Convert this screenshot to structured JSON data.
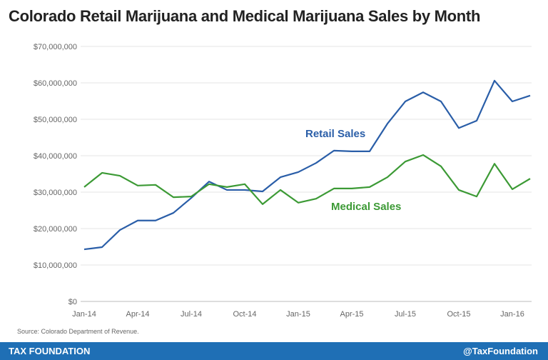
{
  "chart_data": {
    "type": "line",
    "title": "Colorado Retail Marijuana and Medical Marijuana Sales by Month",
    "xlabel": "",
    "ylabel": "",
    "x": [
      "Jan-14",
      "Feb-14",
      "Mar-14",
      "Apr-14",
      "May-14",
      "Jun-14",
      "Jul-14",
      "Aug-14",
      "Sep-14",
      "Oct-14",
      "Nov-14",
      "Dec-14",
      "Jan-15",
      "Feb-15",
      "Mar-15",
      "Apr-15",
      "May-15",
      "Jun-15",
      "Jul-15",
      "Aug-15",
      "Sep-15",
      "Oct-15",
      "Nov-15",
      "Dec-15",
      "Jan-16",
      "Feb-16"
    ],
    "x_tick_labels": [
      "Jan-14",
      "Apr-14",
      "Jul-14",
      "Oct-14",
      "Jan-15",
      "Apr-15",
      "Jul-15",
      "Oct-15",
      "Jan-16"
    ],
    "y_tick_labels": [
      "$0",
      "$10,000,000",
      "$20,000,000",
      "$30,000,000",
      "$40,000,000",
      "$50,000,000",
      "$60,000,000",
      "$70,000,000"
    ],
    "ylim": [
      0,
      70000000
    ],
    "grid": true,
    "series": [
      {
        "name": "Retail Sales",
        "color": "#2a5ea8",
        "values": [
          14300000,
          14900000,
          19600000,
          22200000,
          22200000,
          24300000,
          28400000,
          32900000,
          30600000,
          30600000,
          30200000,
          34100000,
          35500000,
          38000000,
          41400000,
          41200000,
          41200000,
          48800000,
          54900000,
          57400000,
          54900000,
          47600000,
          49600000,
          60600000,
          54900000,
          56500000
        ]
      },
      {
        "name": "Medical Sales",
        "color": "#3c9a35",
        "values": [
          31400000,
          35300000,
          34500000,
          31800000,
          32000000,
          28600000,
          28800000,
          32200000,
          31400000,
          32200000,
          26700000,
          30600000,
          27100000,
          28200000,
          31000000,
          31000000,
          31400000,
          34100000,
          38400000,
          40200000,
          37100000,
          30600000,
          28800000,
          37800000,
          30800000,
          33700000
        ]
      }
    ]
  },
  "source": "Source: Colorado Department of Revenue.",
  "footer": {
    "brand": "TAX FOUNDATION",
    "handle": "@TaxFoundation",
    "color": "#1f6fb5"
  }
}
